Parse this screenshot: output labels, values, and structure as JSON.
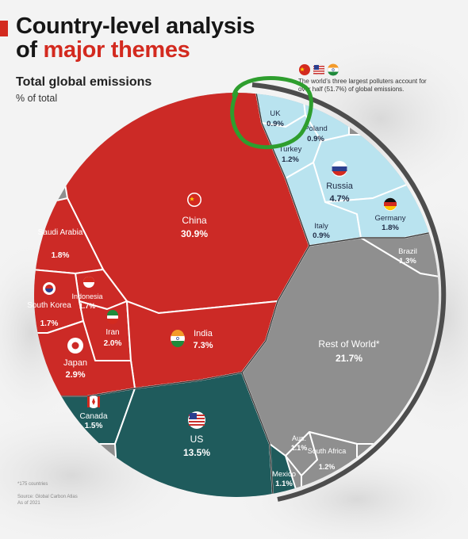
{
  "header": {
    "title_line1": "Country-level analysis",
    "title_line2_prefix": "of ",
    "title_line2_highlight": "major themes",
    "subtitle": "Total global emissions",
    "unit": "% of total"
  },
  "callout": "The world’s three largest polluters account for over half (51.7%) of global emissions.",
  "footnote": "*175 countries",
  "source_line1": "Source: Global Carbon Atlas",
  "source_line2": "As of 2021",
  "colors": {
    "accent": "#d32a1f",
    "asia_group": "#cc2a26",
    "americas_group": "#1f5b5c",
    "europe_group": "#b9e3ef",
    "rest_group": "#8f8f8f",
    "annotation_circle": "#2e9e2e"
  },
  "chart_data": {
    "type": "voronoi-treemap",
    "title": "Total global emissions",
    "unit": "% of total",
    "total_label": "51.7%",
    "items": [
      {
        "name": "China",
        "value": 30.9,
        "label": "30.9%",
        "group": "asia",
        "flag": "china-flag-icon"
      },
      {
        "name": "India",
        "value": 7.3,
        "label": "7.3%",
        "group": "asia",
        "flag": "india-flag-icon"
      },
      {
        "name": "Japan",
        "value": 2.9,
        "label": "2.9%",
        "group": "asia",
        "flag": "japan-flag-icon"
      },
      {
        "name": "Iran",
        "value": 2.0,
        "label": "2.0%",
        "group": "asia",
        "flag": "iran-flag-icon"
      },
      {
        "name": "Saudi Arabia",
        "value": 1.8,
        "label": "1.8%",
        "group": "asia"
      },
      {
        "name": "South Korea",
        "value": 1.7,
        "label": "1.7%",
        "group": "asia",
        "flag": "south-korea-flag-icon"
      },
      {
        "name": "Indonesia",
        "value": 1.7,
        "label": "1.7%",
        "group": "asia",
        "flag": "indonesia-flag-icon"
      },
      {
        "name": "US",
        "value": 13.5,
        "label": "13.5%",
        "group": "americas",
        "flag": "us-flag-icon"
      },
      {
        "name": "Canada",
        "value": 1.5,
        "label": "1.5%",
        "group": "americas",
        "flag": "canada-flag-icon"
      },
      {
        "name": "Mexico",
        "value": 1.1,
        "label": "1.1%",
        "group": "americas"
      },
      {
        "name": "Russia",
        "value": 4.7,
        "label": "4.7%",
        "group": "europe",
        "flag": "russia-flag-icon"
      },
      {
        "name": "Germany",
        "value": 1.8,
        "label": "1.8%",
        "group": "europe",
        "flag": "germany-flag-icon"
      },
      {
        "name": "Turkey",
        "value": 1.2,
        "label": "1.2%",
        "group": "europe"
      },
      {
        "name": "Poland",
        "value": 0.9,
        "label": "0.9%",
        "group": "europe"
      },
      {
        "name": "UK",
        "value": 0.9,
        "label": "0.9%",
        "group": "europe"
      },
      {
        "name": "Italy",
        "value": 0.9,
        "label": "0.9%",
        "group": "europe"
      },
      {
        "name": "Rest of World*",
        "value": 21.7,
        "label": "21.7%",
        "group": "rest"
      },
      {
        "name": "Brazil",
        "value": 1.3,
        "label": "1.3%",
        "group": "rest"
      },
      {
        "name": "Aus.",
        "value": 1.1,
        "label": "1.1%",
        "group": "rest"
      },
      {
        "name": "South Africa",
        "value": 1.2,
        "label": "1.2%",
        "group": "rest"
      }
    ]
  }
}
